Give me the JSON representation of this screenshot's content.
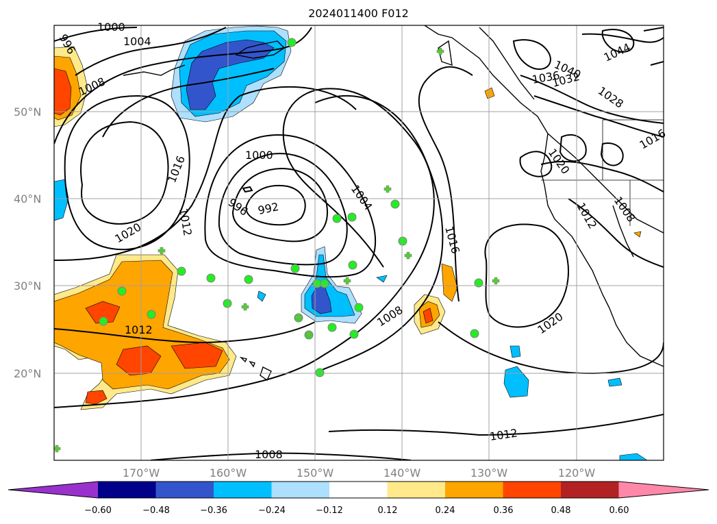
{
  "title": "2024011400 F012",
  "map": {
    "projection": "PlateCarree",
    "lon_range": [
      -180,
      -110
    ],
    "lat_range": [
      10,
      60
    ],
    "lat_ticks": [
      "50°N",
      "40°N",
      "30°N",
      "20°N"
    ],
    "lon_ticks": [
      "170°W",
      "160°W",
      "150°W",
      "140°W",
      "130°W",
      "120°W"
    ],
    "contour_labels": [
      "1000",
      "1004",
      "996",
      "1008",
      "1016",
      "1012",
      "1020",
      "1000",
      "996",
      "992",
      "1004",
      "1016",
      "1008",
      "1012",
      "1020",
      "1012",
      "1008",
      "1044",
      "1040",
      "1036",
      "1032",
      "1028",
      "1020",
      "1012",
      "1008",
      "1016"
    ],
    "colorbar": {
      "ticks": [
        "−0.60",
        "−0.48",
        "−0.36",
        "−0.24",
        "−0.12",
        "0.12",
        "0.24",
        "0.36",
        "0.48",
        "0.60"
      ],
      "colors": [
        "#9932CC",
        "#00008B",
        "#3355CC",
        "#00BFFF",
        "#ADDFFF",
        "#FFFFFF",
        "#FFE98A",
        "#FFA500",
        "#FF4500",
        "#B22222",
        "#FF88AA"
      ]
    },
    "marker_colors": {
      "circle": "#22EE22",
      "plus": "#55CC33",
      "edge": "#808080"
    }
  }
}
